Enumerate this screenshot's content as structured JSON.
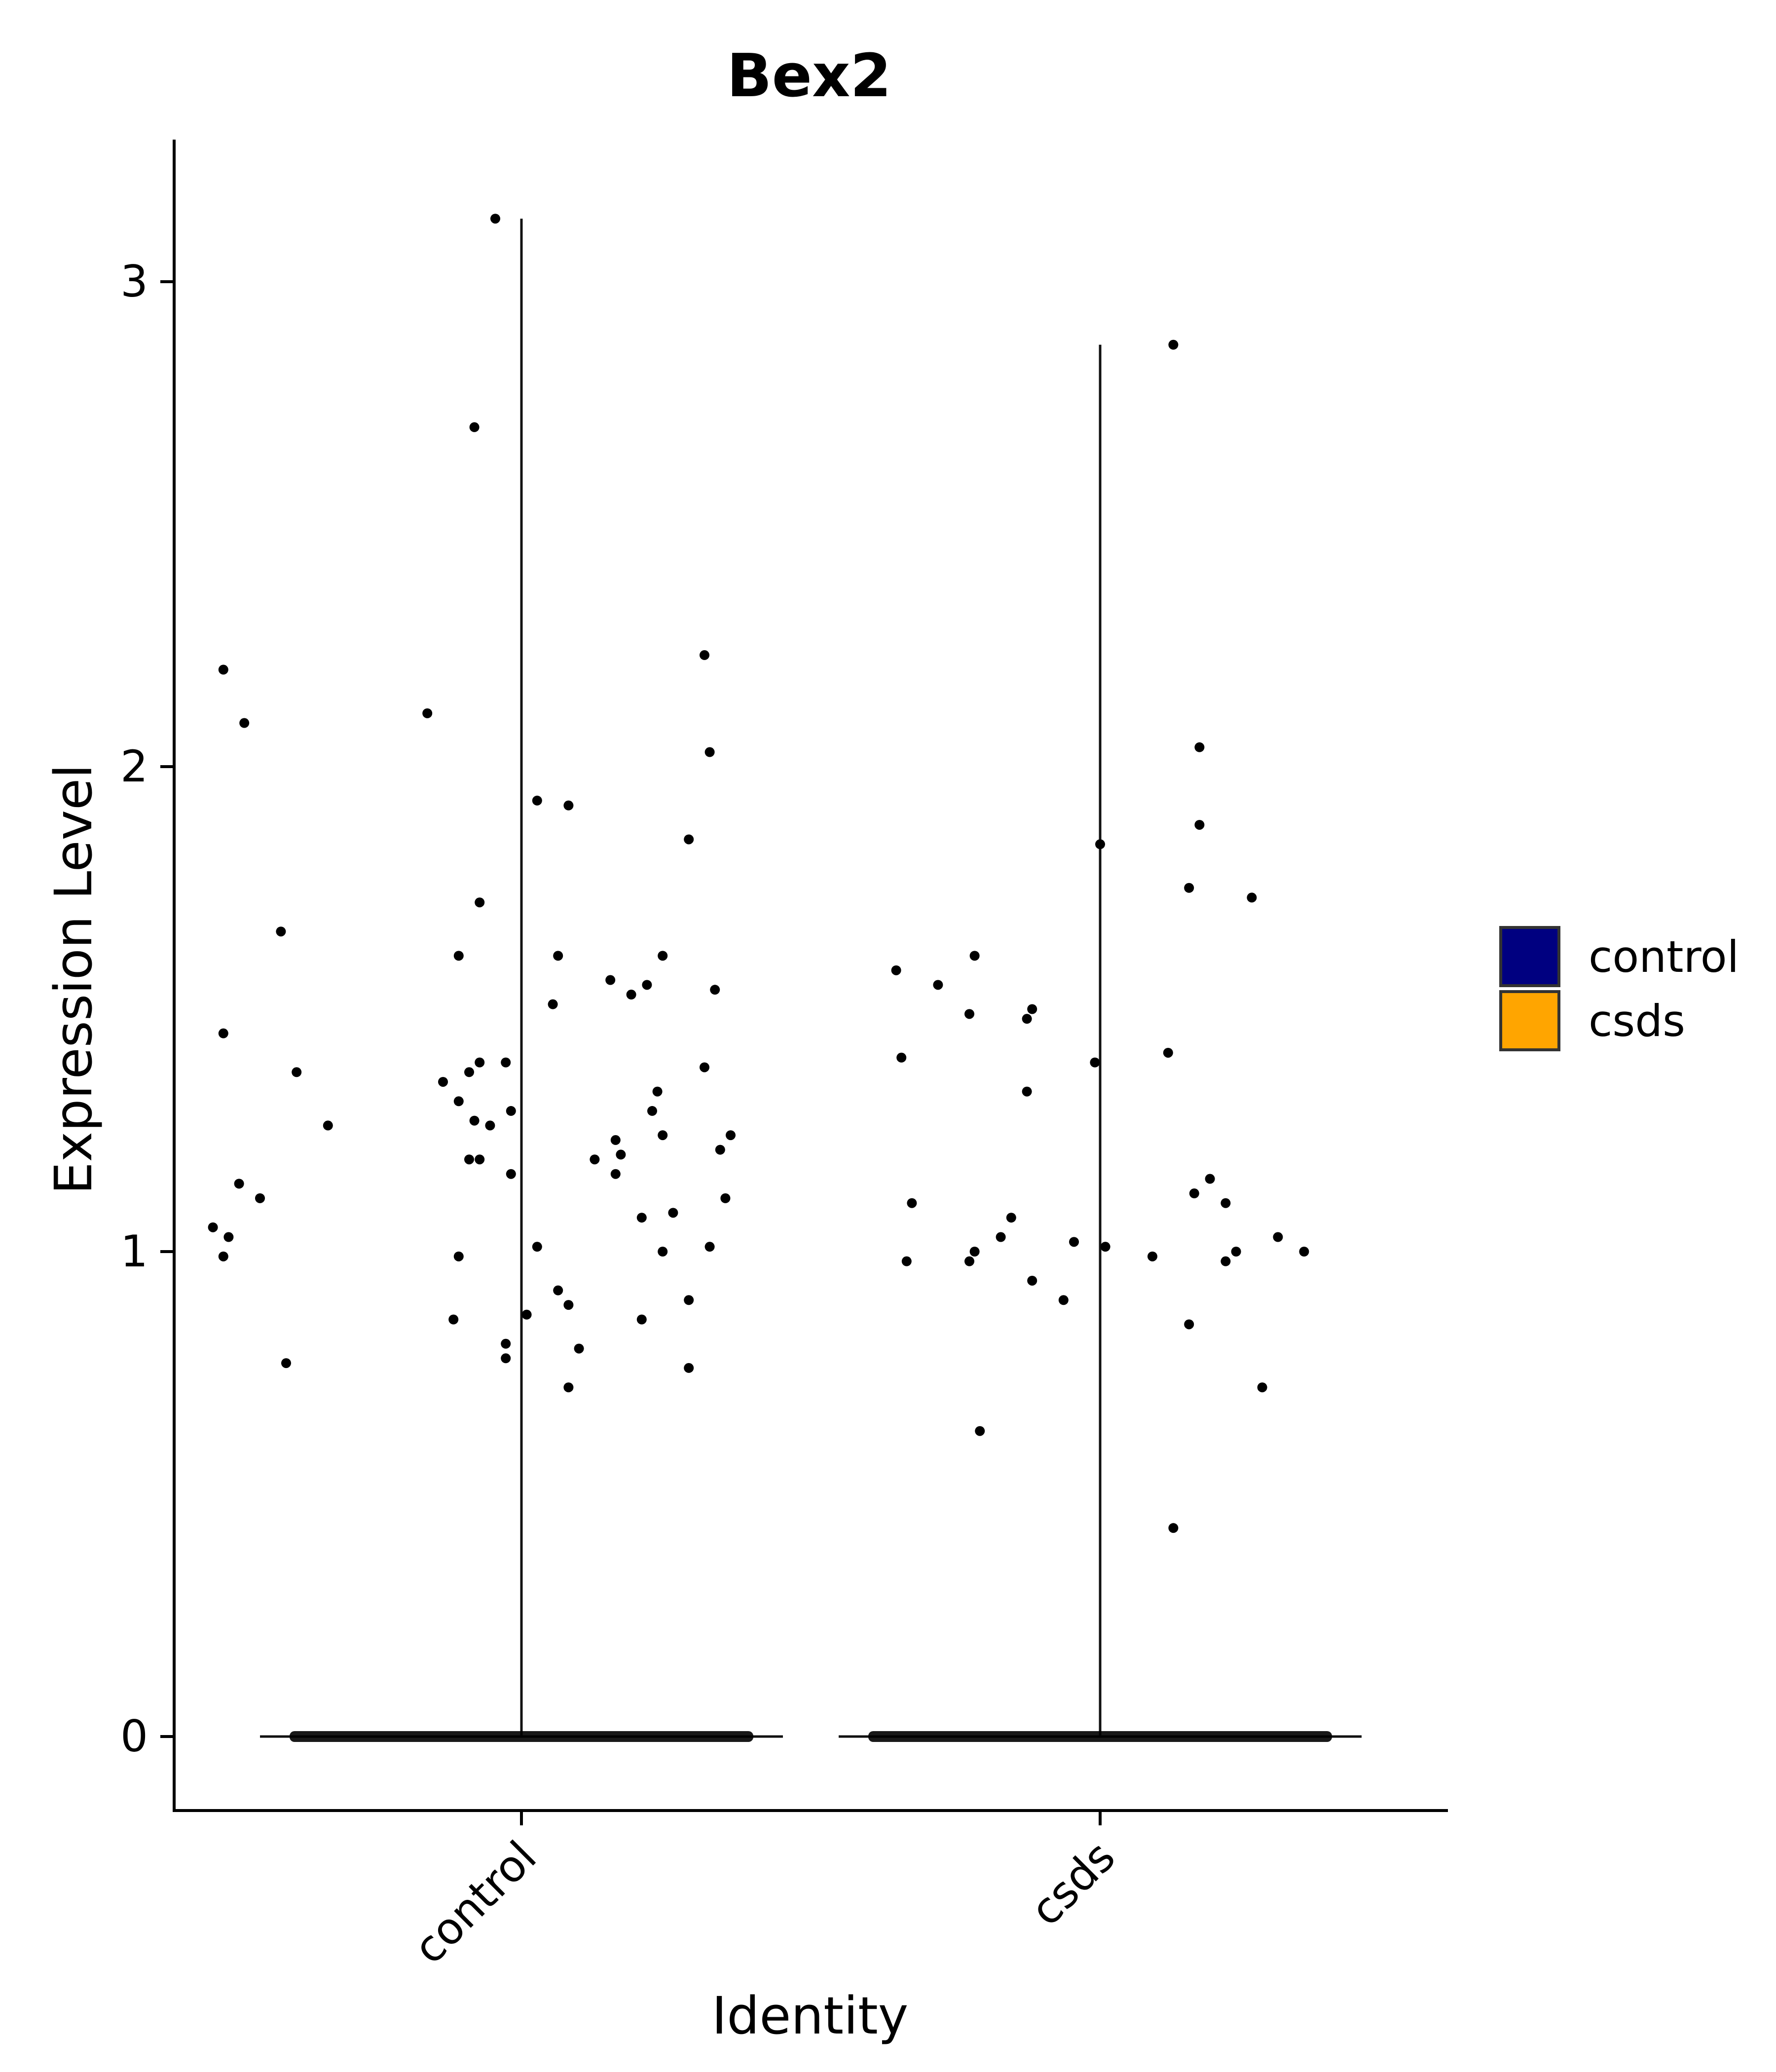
{
  "chart_data": {
    "type": "scatter",
    "title": "Bex2",
    "xlabel": "Identity",
    "ylabel": "Expression Level",
    "ylim": [
      -0.155,
      3.29
    ],
    "yticks": [
      0,
      1,
      2,
      3
    ],
    "categories": [
      "control",
      "csds"
    ],
    "grid": false,
    "legend": {
      "placement": "right",
      "entries": [
        {
          "label": "control",
          "color": "#000080"
        },
        {
          "label": "csds",
          "color": "#FFA500"
        }
      ]
    },
    "violin_max": [
      3.13,
      2.87
    ],
    "point_color": "#000000",
    "series": [
      {
        "category": "control",
        "points": [
          [
            -0.59,
            1.05
          ],
          [
            -0.56,
            1.03
          ],
          [
            -0.57,
            0.99
          ],
          [
            -0.54,
            1.14
          ],
          [
            -0.5,
            1.11
          ],
          [
            -0.57,
            2.2
          ],
          [
            -0.53,
            2.09
          ],
          [
            -0.46,
            1.66
          ],
          [
            -0.57,
            1.45
          ],
          [
            -0.43,
            1.37
          ],
          [
            -0.45,
            0.77
          ],
          [
            -0.37,
            1.26
          ],
          [
            -0.18,
            2.11
          ],
          [
            -0.15,
            1.35
          ],
          [
            -0.12,
            1.31
          ],
          [
            -0.08,
            1.72
          ],
          [
            -0.12,
            1.61
          ],
          [
            -0.1,
            1.37
          ],
          [
            -0.08,
            1.39
          ],
          [
            -0.09,
            1.27
          ],
          [
            -0.06,
            1.26
          ],
          [
            -0.1,
            1.19
          ],
          [
            -0.08,
            1.19
          ],
          [
            -0.12,
            0.99
          ],
          [
            -0.13,
            0.86
          ],
          [
            -0.03,
            0.81
          ],
          [
            -0.03,
            0.78
          ],
          [
            -0.09,
            2.7
          ],
          [
            -0.05,
            3.13
          ],
          [
            -0.03,
            1.39
          ],
          [
            -0.02,
            1.29
          ],
          [
            -0.02,
            1.16
          ],
          [
            0.01,
            0.87
          ],
          [
            0.03,
            1.93
          ],
          [
            0.03,
            1.01
          ],
          [
            0.09,
            1.92
          ],
          [
            0.07,
            1.61
          ],
          [
            0.06,
            1.51
          ],
          [
            0.07,
            0.92
          ],
          [
            0.09,
            0.89
          ],
          [
            0.11,
            0.8
          ],
          [
            0.09,
            0.72
          ],
          [
            0.17,
            1.56
          ],
          [
            0.18,
            1.23
          ],
          [
            0.18,
            1.16
          ],
          [
            0.19,
            1.2
          ],
          [
            0.14,
            1.19
          ],
          [
            0.21,
            1.53
          ],
          [
            0.24,
            1.55
          ],
          [
            0.27,
            1.61
          ],
          [
            0.25,
            1.29
          ],
          [
            0.26,
            1.33
          ],
          [
            0.27,
            1.24
          ],
          [
            0.23,
            1.07
          ],
          [
            0.27,
            1.0
          ],
          [
            0.23,
            0.86
          ],
          [
            0.29,
            1.08
          ],
          [
            0.32,
            1.85
          ],
          [
            0.35,
            2.23
          ],
          [
            0.36,
            2.03
          ],
          [
            0.35,
            1.38
          ],
          [
            0.37,
            1.54
          ],
          [
            0.38,
            1.21
          ],
          [
            0.4,
            1.24
          ],
          [
            0.39,
            1.11
          ],
          [
            0.36,
            1.01
          ],
          [
            0.32,
            0.9
          ],
          [
            0.32,
            0.76
          ]
        ]
      },
      {
        "category": "csds",
        "points": [
          [
            -0.39,
            1.58
          ],
          [
            -0.38,
            1.4
          ],
          [
            -0.36,
            1.1
          ],
          [
            -0.37,
            0.98
          ],
          [
            -0.31,
            1.55
          ],
          [
            -0.25,
            1.49
          ],
          [
            -0.24,
            1.61
          ],
          [
            -0.25,
            0.98
          ],
          [
            -0.24,
            1.0
          ],
          [
            -0.23,
            0.63
          ],
          [
            -0.19,
            1.03
          ],
          [
            -0.17,
            1.07
          ],
          [
            -0.13,
            1.5
          ],
          [
            -0.14,
            1.48
          ],
          [
            -0.14,
            1.33
          ],
          [
            -0.13,
            0.94
          ],
          [
            -0.07,
            0.9
          ],
          [
            -0.05,
            1.02
          ],
          [
            -0.01,
            1.39
          ],
          [
            0.0,
            1.84
          ],
          [
            0.01,
            1.01
          ],
          [
            0.1,
            0.99
          ],
          [
            0.13,
            1.41
          ],
          [
            0.14,
            2.87
          ],
          [
            0.17,
            1.75
          ],
          [
            0.19,
            2.04
          ],
          [
            0.19,
            1.88
          ],
          [
            0.18,
            1.12
          ],
          [
            0.21,
            1.15
          ],
          [
            0.17,
            0.85
          ],
          [
            0.14,
            0.43
          ],
          [
            0.24,
            1.1
          ],
          [
            0.24,
            0.98
          ],
          [
            0.26,
            1.0
          ],
          [
            0.29,
            1.73
          ],
          [
            0.31,
            0.72
          ],
          [
            0.34,
            1.03
          ],
          [
            0.39,
            1.0
          ]
        ]
      }
    ]
  }
}
